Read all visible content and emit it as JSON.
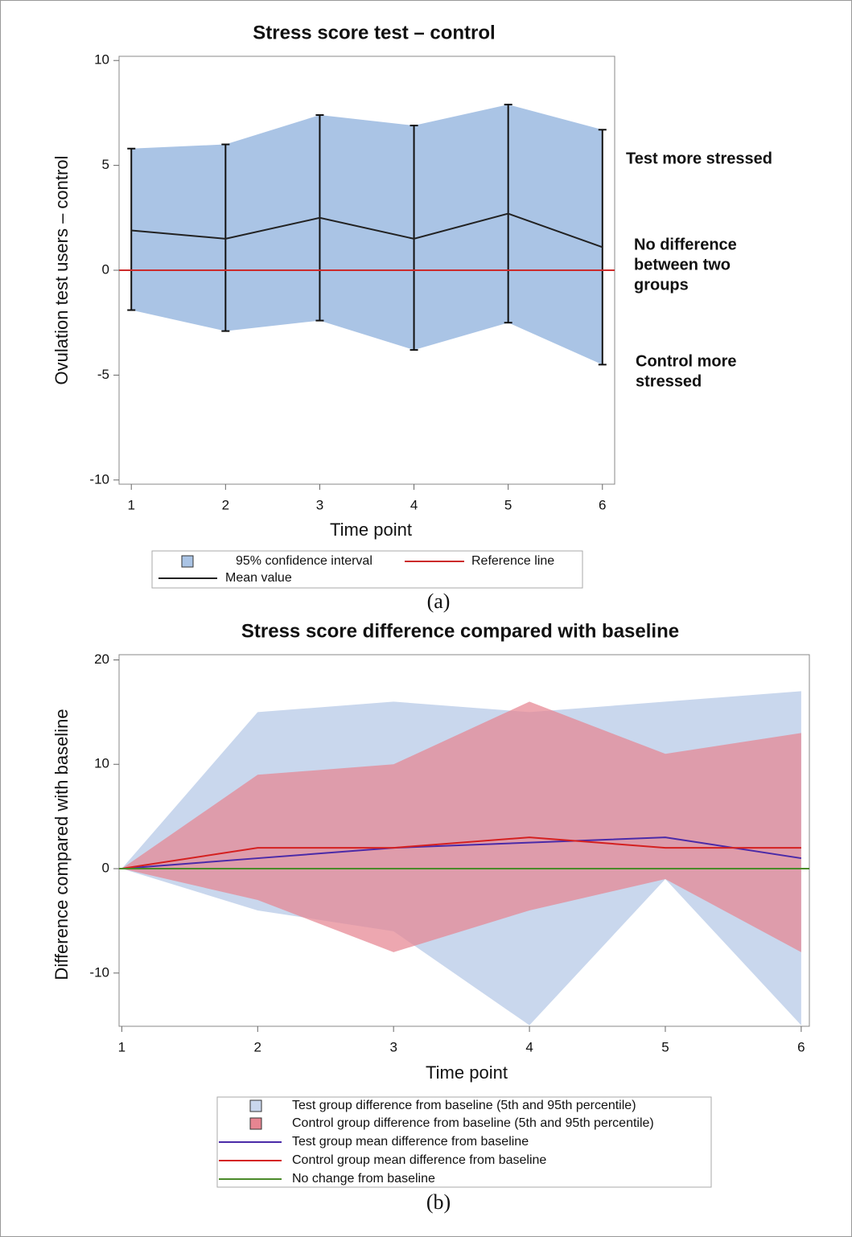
{
  "chart_data": [
    {
      "type": "line",
      "title": "Stress score test – control",
      "x_label": "Time point",
      "y_label": "Ovulation test users – control",
      "panel_label": "(a)",
      "x": [
        1,
        2,
        3,
        4,
        5,
        6
      ],
      "xlim": [
        0.87,
        6.13
      ],
      "xticks": [
        1,
        2,
        3,
        4,
        5,
        6
      ],
      "ylim": [
        -10.2,
        10.2
      ],
      "yticks": [
        10,
        5,
        0,
        -5,
        -10
      ],
      "series": [
        {
          "name": "95% confidence interval",
          "type": "band",
          "errorbars": true,
          "color": "#aac4e5",
          "upper": [
            5.8,
            6.0,
            7.4,
            6.9,
            7.9,
            6.7
          ],
          "lower": [
            -1.9,
            -2.9,
            -2.4,
            -3.8,
            -2.5,
            -4.5
          ]
        },
        {
          "name": "Mean value",
          "type": "line",
          "color": "#222222",
          "values": [
            1.9,
            1.5,
            2.5,
            1.5,
            2.7,
            1.1
          ]
        },
        {
          "name": "Reference line",
          "type": "hline",
          "color": "#cc2b2b",
          "y": 0
        }
      ],
      "annotations": [
        [
          "Test more stressed"
        ],
        [
          "No difference",
          "between two",
          "groups"
        ],
        [
          "Control more",
          "stressed"
        ]
      ]
    },
    {
      "type": "line",
      "title": "Stress score difference compared with baseline",
      "x_label": "Time point",
      "y_label": "Difference compared with baseline",
      "panel_label": "(b)",
      "x": [
        1,
        2,
        3,
        4,
        5,
        6
      ],
      "xlim": [
        0.98,
        6.06
      ],
      "xticks": [
        1,
        2,
        3,
        4,
        5,
        6
      ],
      "ylim": [
        -15.1,
        20.5
      ],
      "yticks": [
        20,
        10,
        0,
        -10
      ],
      "series": [
        {
          "name": "Test group difference from baseline (5th and 95th percentile)",
          "type": "band",
          "color": "#c9d7ed",
          "upper": [
            0,
            15,
            16,
            15,
            16,
            17
          ],
          "lower": [
            0,
            -4,
            -6,
            -15,
            -1,
            -15
          ]
        },
        {
          "name": "Control group difference from baseline (5th and 95th percentile)",
          "type": "band",
          "color": "#e68591",
          "upper": [
            0,
            9,
            10,
            16,
            11,
            13
          ],
          "lower": [
            0,
            -3,
            -8,
            -4,
            -1,
            -8
          ]
        },
        {
          "name": "Test group mean difference from baseline",
          "type": "line",
          "color": "#4a2aa8",
          "values": [
            0,
            1,
            2,
            2.5,
            3,
            1
          ]
        },
        {
          "name": "Control group mean difference from baseline",
          "type": "line",
          "color": "#d42020",
          "values": [
            0,
            2,
            2,
            3,
            2,
            2
          ]
        },
        {
          "name": "No change from baseline",
          "type": "hline",
          "color": "#4a8a2a",
          "y": 0
        }
      ],
      "annotations": []
    }
  ]
}
